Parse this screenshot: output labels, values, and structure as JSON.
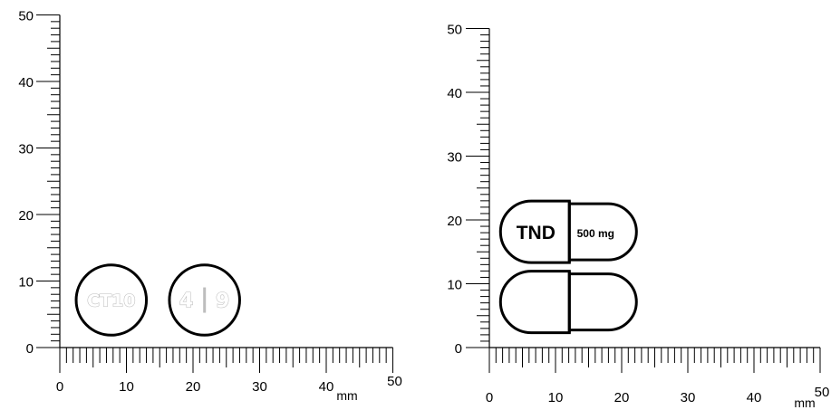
{
  "units": "mm",
  "scale": {
    "y_ticks": [
      "0",
      "10",
      "20",
      "30",
      "40",
      "50"
    ],
    "x_ticks": [
      "0",
      "10",
      "20",
      "30",
      "40",
      "50"
    ]
  },
  "left_panel": {
    "tablets": [
      {
        "shape": "round",
        "imprint": "CT10",
        "center_mm": [
          8,
          7
        ],
        "diameter_mm": 10
      },
      {
        "shape": "round",
        "imprint": "4 | 9",
        "center_mm": [
          22,
          7
        ],
        "diameter_mm": 10
      }
    ]
  },
  "right_panel": {
    "capsules": [
      {
        "side_a": "TND",
        "side_b": "500 mg",
        "center_y_mm": 18,
        "length_mm": 20,
        "width_mm": 9.5
      },
      {
        "side_a": "",
        "side_b": "",
        "center_y_mm": 7,
        "length_mm": 20,
        "width_mm": 9.5
      }
    ]
  }
}
